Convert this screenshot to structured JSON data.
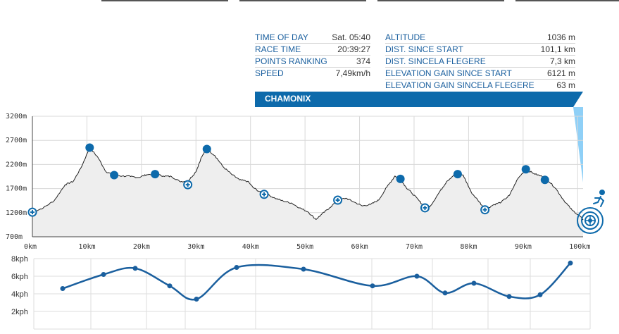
{
  "info": {
    "left": [
      {
        "label": "TIME OF DAY",
        "value": "Sat. 05:40"
      },
      {
        "label": "RACE TIME",
        "value": "20:39:27"
      },
      {
        "label": "POINTS RANKING",
        "value": "374"
      },
      {
        "label": "SPEED",
        "value": "7,49km/h"
      }
    ],
    "right": [
      {
        "label": "ALTITUDE",
        "value": "1036 m"
      },
      {
        "label": "DIST. SINCE START",
        "value": "101,1 km"
      },
      {
        "label": "DIST. SINCELA FLEGERE",
        "value": "7,3 km"
      },
      {
        "label": "ELEVATION GAIN SINCE START",
        "value": "6121 m"
      },
      {
        "label": "ELEVATION GAIN SINCELA FLEGERE",
        "value": "63 m"
      }
    ],
    "location": "CHAMONIX"
  },
  "chart_data": [
    {
      "type": "area",
      "xlabel": "",
      "ylabel": "",
      "xlim": [
        0,
        101
      ],
      "ylim": [
        700,
        3200
      ],
      "x_ticks": [
        "0km",
        "10km",
        "20km",
        "30km",
        "40km",
        "50km",
        "60km",
        "70km",
        "80km",
        "90km",
        "100km"
      ],
      "y_ticks": [
        "700m",
        "1200m",
        "1700m",
        "2200m",
        "2700m",
        "3200m"
      ],
      "grid": true,
      "fill_color": "#eeeeee",
      "line_color": "#222222",
      "profile": [
        [
          0,
          1210
        ],
        [
          2,
          1300
        ],
        [
          4,
          1450
        ],
        [
          6,
          1780
        ],
        [
          7.5,
          1850
        ],
        [
          9,
          2150
        ],
        [
          10.5,
          2550
        ],
        [
          12,
          2350
        ],
        [
          13.5,
          2050
        ],
        [
          15,
          1980
        ],
        [
          16.5,
          1960
        ],
        [
          18,
          1950
        ],
        [
          19.5,
          1930
        ],
        [
          21,
          1990
        ],
        [
          22.5,
          2000
        ],
        [
          24,
          1960
        ],
        [
          25.5,
          1950
        ],
        [
          27,
          1850
        ],
        [
          28.5,
          1850
        ],
        [
          30,
          2050
        ],
        [
          31,
          2350
        ],
        [
          32,
          2520
        ],
        [
          33.5,
          2380
        ],
        [
          35,
          2150
        ],
        [
          36.5,
          2000
        ],
        [
          38,
          1880
        ],
        [
          39.5,
          1850
        ],
        [
          40.5,
          1720
        ],
        [
          42,
          1610
        ],
        [
          43,
          1580
        ],
        [
          44.5,
          1500
        ],
        [
          46,
          1440
        ],
        [
          47.5,
          1400
        ],
        [
          49,
          1300
        ],
        [
          50.5,
          1220
        ],
        [
          52,
          1060
        ],
        [
          53,
          1160
        ],
        [
          54.5,
          1300
        ],
        [
          56,
          1460
        ],
        [
          57.5,
          1500
        ],
        [
          59,
          1420
        ],
        [
          60.5,
          1340
        ],
        [
          62,
          1370
        ],
        [
          63.5,
          1460
        ],
        [
          65,
          1730
        ],
        [
          66.5,
          1960
        ],
        [
          67.5,
          1900
        ],
        [
          68.5,
          1730
        ],
        [
          69.5,
          1620
        ],
        [
          71,
          1440
        ],
        [
          72,
          1300
        ],
        [
          73,
          1340
        ],
        [
          74.5,
          1600
        ],
        [
          76,
          1850
        ],
        [
          77.5,
          2000
        ],
        [
          79,
          1980
        ],
        [
          80.5,
          1620
        ],
        [
          82,
          1420
        ],
        [
          83,
          1260
        ],
        [
          84.5,
          1360
        ],
        [
          86,
          1420
        ],
        [
          87.5,
          1560
        ],
        [
          89,
          1900
        ],
        [
          90.5,
          2100
        ],
        [
          92,
          2010
        ],
        [
          93.5,
          1950
        ],
        [
          94.5,
          1880
        ],
        [
          96,
          1700
        ],
        [
          97.5,
          1450
        ],
        [
          99,
          1250
        ],
        [
          100.5,
          1120
        ],
        [
          101,
          1050
        ]
      ],
      "markers_filled": [
        [
          10.5,
          2550
        ],
        [
          15,
          1980
        ],
        [
          22.5,
          2000
        ],
        [
          32,
          2520
        ],
        [
          67.5,
          1900
        ],
        [
          78,
          2000
        ],
        [
          90.5,
          2100
        ],
        [
          94,
          1880
        ]
      ],
      "markers_crosshair": [
        [
          0,
          1210
        ],
        [
          28.5,
          1780
        ],
        [
          42.5,
          1580
        ],
        [
          56,
          1460
        ],
        [
          72,
          1300
        ],
        [
          83,
          1260
        ]
      ],
      "current_position": [
        101,
        1036
      ],
      "marker_color": "#0d6aab"
    },
    {
      "type": "line",
      "xlabel": "",
      "ylabel": "",
      "ylim": [
        0,
        8
      ],
      "y_ticks": [
        "2kph",
        "4kph",
        "6kph",
        "8kph"
      ],
      "grid": true,
      "line_color": "#1a5f9e",
      "points": [
        [
          0,
          4.6
        ],
        [
          1,
          6.2
        ],
        [
          2,
          6.9
        ],
        [
          3,
          4.9
        ],
        [
          4,
          3.4
        ],
        [
          5,
          7.0
        ],
        [
          6,
          6.8
        ],
        [
          7,
          4.9
        ],
        [
          8,
          6.0
        ],
        [
          9,
          4.1
        ],
        [
          10,
          5.2
        ],
        [
          11,
          3.7
        ],
        [
          12,
          3.9
        ],
        [
          13,
          7.5
        ]
      ]
    }
  ]
}
